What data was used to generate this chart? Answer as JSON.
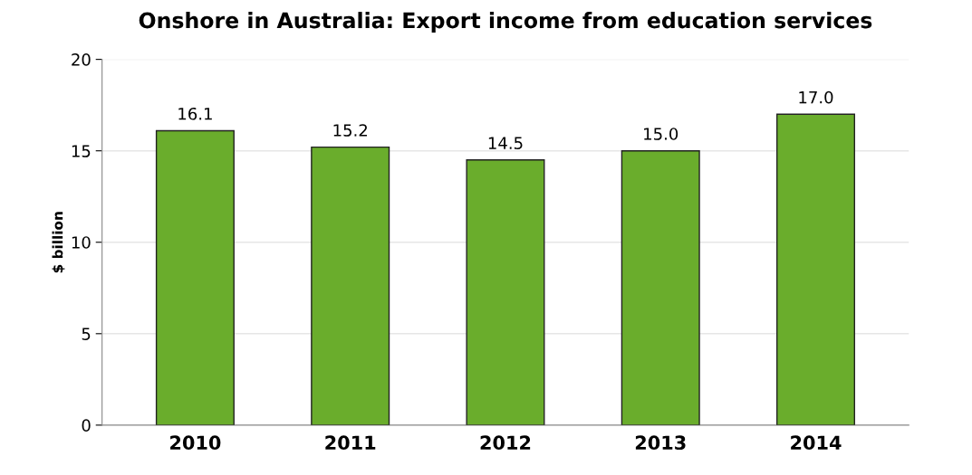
{
  "chart_data": {
    "type": "bar",
    "title": "Onshore in Australia: Export income from education services",
    "ylabel": "$ billion",
    "categories": [
      "2010",
      "2011",
      "2012",
      "2013",
      "2014"
    ],
    "values": [
      16.1,
      15.2,
      14.5,
      15.0,
      17.0
    ],
    "value_labels": [
      "16.1",
      "15.2",
      "14.5",
      "15.0",
      "17.0"
    ],
    "color": "#6aad2c",
    "ylim": [
      0,
      20
    ],
    "yticks": [
      0,
      5,
      10,
      15,
      20
    ],
    "grid": "y",
    "legend": false
  }
}
